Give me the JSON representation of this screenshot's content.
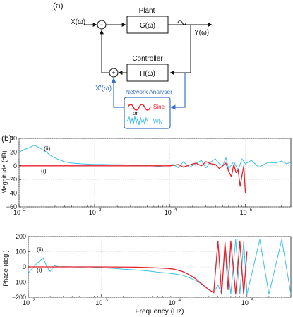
{
  "panel_a_label": "(a)",
  "panel_b_label": "(b)",
  "diagram": {
    "input": "X(ω)",
    "minus": "-",
    "plus": "+",
    "plant_title": "Plant",
    "plant_tf": "G(ω)",
    "output": "Y(ω)",
    "controller_title": "Controller",
    "controller_tf": "H(ω)",
    "feedback_input": "X'(ω)",
    "analyser_title": "Network Analyser",
    "sine_label": "Sine",
    "or_label": "or",
    "wn_label": "WN",
    "colors": {
      "sine": "#e8202a",
      "wn": "#3bbfe6",
      "analyser": "#3a72c4",
      "block": "#111111"
    }
  },
  "chart_data": [
    {
      "type": "line",
      "xscale": "log",
      "xlim": [
        100,
        400000
      ],
      "ylim": [
        -60,
        40
      ],
      "ylabel": "Magnitude (dB)",
      "xlabel": "",
      "ytick_labels": [
        "40",
        "20",
        "0",
        "−20",
        "−40",
        "−60"
      ],
      "xtick_labels": [
        {
          "base": "10",
          "exp": "2"
        },
        {
          "base": "10",
          "exp": "3"
        },
        {
          "base": "10",
          "exp": "4"
        },
        {
          "base": "10",
          "exp": "5"
        }
      ],
      "annotations": [
        "(ii)",
        "(i)"
      ],
      "series": [
        {
          "color": "#3bbfe6",
          "x": [
            100,
            120,
            140,
            160,
            180,
            200,
            230,
            270,
            320,
            400,
            500,
            650,
            800,
            1000,
            1300,
            1700,
            2200,
            3000,
            4000,
            5500,
            7000,
            9000,
            11000,
            13000,
            15000,
            18000,
            22000,
            26000,
            30000,
            35000,
            40000,
            45000,
            50000,
            55000,
            60000,
            70000,
            80000,
            90000,
            100000,
            120000,
            150000,
            200000,
            250000,
            300000,
            350000,
            400000
          ],
          "y": [
            20,
            24,
            27,
            30,
            27,
            24,
            20,
            14,
            10,
            6,
            4,
            3,
            2.5,
            2,
            2,
            1.5,
            1.5,
            1,
            0,
            0,
            -1,
            0,
            2,
            -3,
            6,
            -2,
            3,
            8,
            -3,
            6,
            10,
            3,
            0,
            12,
            -4,
            6,
            -6,
            10,
            3,
            8,
            -2,
            5,
            4,
            7,
            3,
            5
          ]
        },
        {
          "color": "#e8202a",
          "x": [
            100,
            1000,
            5000,
            8000,
            10000,
            13000,
            15000,
            18000,
            22000,
            26000,
            30000,
            35000,
            40000,
            45000,
            50000,
            55000,
            60000,
            65000,
            70000,
            75000,
            80000,
            85000,
            90000,
            95000,
            100000
          ],
          "y": [
            0,
            0,
            0,
            0,
            0,
            2,
            -2,
            1,
            4,
            0,
            6,
            3,
            2,
            -4,
            0,
            4,
            -8,
            -16,
            2,
            -10,
            -6,
            -30,
            -14,
            0,
            -40
          ]
        }
      ]
    },
    {
      "type": "line",
      "xscale": "log",
      "xlim": [
        100,
        400000
      ],
      "ylim": [
        -200,
        200
      ],
      "ylabel": "Phase (deg.)",
      "xlabel": "Frequency (Hz)",
      "ytick_labels": [
        "200",
        "100",
        "0",
        "−100",
        "−200"
      ],
      "xtick_labels": [
        {
          "base": "10",
          "exp": "2"
        },
        {
          "base": "10",
          "exp": "3"
        },
        {
          "base": "10",
          "exp": "4"
        },
        {
          "base": "10",
          "exp": "5"
        }
      ],
      "annotations": [
        "(ii)",
        "(i)"
      ],
      "series": [
        {
          "color": "#3bbfe6",
          "x": [
            100,
            130,
            160,
            180,
            200,
            230,
            260,
            300,
            400,
            500,
            700,
            1000,
            1500,
            2000,
            3000,
            4000,
            5000,
            6000,
            8000,
            10000,
            13000,
            16000,
            20000,
            25000,
            30000,
            35000,
            40000,
            45000,
            50000,
            60000,
            70000,
            80000,
            90000,
            100000,
            150000,
            200000,
            300000,
            400000
          ],
          "y": [
            -40,
            20,
            60,
            0,
            -30,
            10,
            0,
            2,
            0,
            -2,
            0,
            -5,
            -10,
            -15,
            -20,
            -25,
            -30,
            -35,
            -40,
            -45,
            -55,
            -70,
            -90,
            -120,
            -150,
            -170,
            -120,
            -180,
            150,
            -180,
            180,
            -180,
            170,
            -180,
            180,
            -180,
            180,
            -180
          ]
        },
        {
          "color": "#e8202a",
          "x": [
            100,
            1000,
            3000,
            5000,
            8000,
            10000,
            13000,
            16000,
            20000,
            25000,
            30000,
            35000,
            40000,
            45000,
            50000,
            55000,
            60000,
            70000,
            80000,
            90000,
            100000
          ],
          "y": [
            0,
            0,
            -2,
            -5,
            -10,
            -15,
            -30,
            -50,
            -80,
            -120,
            -150,
            -170,
            170,
            -180,
            160,
            -150,
            170,
            -180,
            170,
            -180,
            100
          ]
        }
      ]
    }
  ]
}
